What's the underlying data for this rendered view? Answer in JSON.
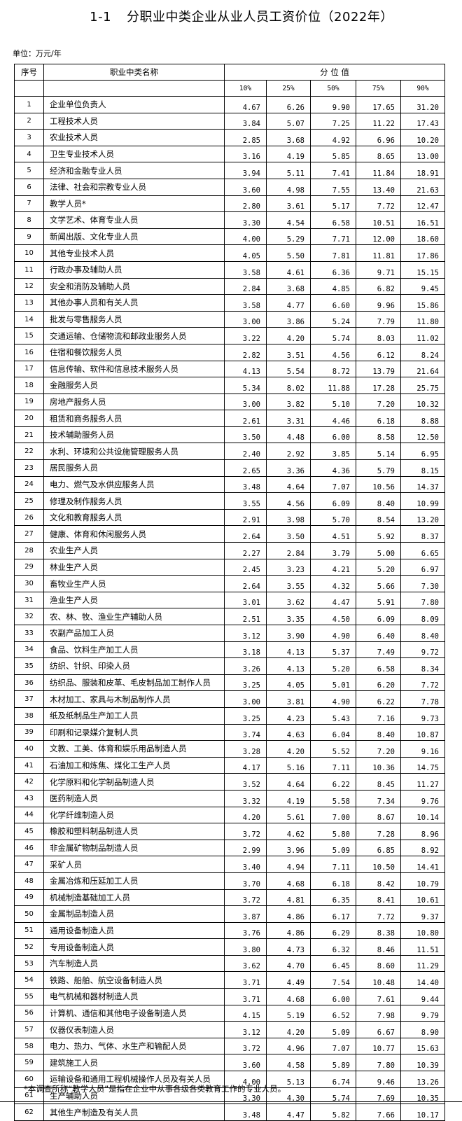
{
  "title": {
    "number": "1-1",
    "text": "分职业中类企业从业人员工资价位（2022年）"
  },
  "unit": "单位：万元/年",
  "table": {
    "headers": {
      "seq": "序号",
      "name": "职业中类名称",
      "group": "分 位 值",
      "percentiles": [
        "10%",
        "25%",
        "50%",
        "75%",
        "90%"
      ]
    },
    "rows": [
      [
        "1",
        "企业单位负责人",
        "4.67",
        "6.26",
        "9.90",
        "17.65",
        "31.20"
      ],
      [
        "2",
        "工程技术人员",
        "3.84",
        "5.07",
        "7.25",
        "11.22",
        "17.43"
      ],
      [
        "3",
        "农业技术人员",
        "2.85",
        "3.68",
        "4.92",
        "6.96",
        "10.20"
      ],
      [
        "4",
        "卫生专业技术人员",
        "3.16",
        "4.19",
        "5.85",
        "8.65",
        "13.00"
      ],
      [
        "5",
        "经济和金融专业人员",
        "3.94",
        "5.11",
        "7.41",
        "11.84",
        "18.91"
      ],
      [
        "6",
        "法律、社会和宗教专业人员",
        "3.60",
        "4.98",
        "7.55",
        "13.40",
        "21.63"
      ],
      [
        "7",
        "教学人员*",
        "2.80",
        "3.61",
        "5.17",
        "7.72",
        "12.47"
      ],
      [
        "8",
        "文学艺术、体育专业人员",
        "3.30",
        "4.54",
        "6.58",
        "10.51",
        "16.51"
      ],
      [
        "9",
        "新闻出版、文化专业人员",
        "4.00",
        "5.29",
        "7.71",
        "12.00",
        "18.60"
      ],
      [
        "10",
        "其他专业技术人员",
        "4.05",
        "5.50",
        "7.81",
        "11.81",
        "17.86"
      ],
      [
        "11",
        "行政办事及辅助人员",
        "3.58",
        "4.61",
        "6.36",
        "9.71",
        "15.15"
      ],
      [
        "12",
        "安全和消防及辅助人员",
        "2.84",
        "3.68",
        "4.85",
        "6.82",
        "9.45"
      ],
      [
        "13",
        "其他办事人员和有关人员",
        "3.58",
        "4.77",
        "6.60",
        "9.96",
        "15.86"
      ],
      [
        "14",
        "批发与零售服务人员",
        "3.00",
        "3.86",
        "5.24",
        "7.79",
        "11.80"
      ],
      [
        "15",
        "交通运输、仓储物流和邮政业服务人员",
        "3.22",
        "4.20",
        "5.74",
        "8.03",
        "11.02"
      ],
      [
        "16",
        "住宿和餐饮服务人员",
        "2.82",
        "3.51",
        "4.56",
        "6.12",
        "8.24"
      ],
      [
        "17",
        "信息传输、软件和信息技术服务人员",
        "4.13",
        "5.54",
        "8.72",
        "13.79",
        "21.64"
      ],
      [
        "18",
        "金融服务人员",
        "5.34",
        "8.02",
        "11.88",
        "17.28",
        "25.75"
      ],
      [
        "19",
        "房地产服务人员",
        "3.00",
        "3.82",
        "5.10",
        "7.20",
        "10.32"
      ],
      [
        "20",
        "租赁和商务服务人员",
        "2.61",
        "3.31",
        "4.46",
        "6.18",
        "8.88"
      ],
      [
        "21",
        "技术辅助服务人员",
        "3.50",
        "4.48",
        "6.00",
        "8.58",
        "12.50"
      ],
      [
        "22",
        "水利、环境和公共设施管理服务人员",
        "2.40",
        "2.92",
        "3.85",
        "5.14",
        "6.95"
      ],
      [
        "23",
        "居民服务人员",
        "2.65",
        "3.36",
        "4.36",
        "5.79",
        "8.15"
      ],
      [
        "24",
        "电力、燃气及水供应服务人员",
        "3.48",
        "4.64",
        "7.07",
        "10.56",
        "14.37"
      ],
      [
        "25",
        "修理及制作服务人员",
        "3.55",
        "4.56",
        "6.09",
        "8.40",
        "10.99"
      ],
      [
        "26",
        "文化和教育服务人员",
        "2.91",
        "3.98",
        "5.70",
        "8.54",
        "13.20"
      ],
      [
        "27",
        "健康、体育和休闲服务人员",
        "2.64",
        "3.50",
        "4.51",
        "5.92",
        "8.37"
      ],
      [
        "28",
        "农业生产人员",
        "2.27",
        "2.84",
        "3.79",
        "5.00",
        "6.65"
      ],
      [
        "29",
        "林业生产人员",
        "2.45",
        "3.23",
        "4.21",
        "5.20",
        "6.97"
      ],
      [
        "30",
        "畜牧业生产人员",
        "2.64",
        "3.55",
        "4.32",
        "5.66",
        "7.30"
      ],
      [
        "31",
        "渔业生产人员",
        "3.01",
        "3.62",
        "4.47",
        "5.91",
        "7.80"
      ],
      [
        "32",
        "农、林、牧、渔业生产辅助人员",
        "2.51",
        "3.35",
        "4.50",
        "6.09",
        "8.09"
      ],
      [
        "33",
        "农副产品加工人员",
        "3.12",
        "3.90",
        "4.90",
        "6.40",
        "8.40"
      ],
      [
        "34",
        "食品、饮料生产加工人员",
        "3.18",
        "4.13",
        "5.37",
        "7.49",
        "9.72"
      ],
      [
        "35",
        "纺织、针织、印染人员",
        "3.26",
        "4.13",
        "5.20",
        "6.58",
        "8.34"
      ],
      [
        "36",
        "纺织品、服装和皮革、毛皮制品加工制作人员",
        "3.25",
        "4.05",
        "5.01",
        "6.20",
        "7.72"
      ],
      [
        "37",
        "木材加工、家具与木制品制作人员",
        "3.00",
        "3.81",
        "4.90",
        "6.22",
        "7.78"
      ],
      [
        "38",
        "纸及纸制品生产加工人员",
        "3.25",
        "4.23",
        "5.43",
        "7.16",
        "9.73"
      ],
      [
        "39",
        "印刷和记录媒介复制人员",
        "3.74",
        "4.63",
        "6.04",
        "8.40",
        "10.87"
      ],
      [
        "40",
        "文教、工美、体育和娱乐用品制造人员",
        "3.28",
        "4.20",
        "5.52",
        "7.20",
        "9.16"
      ],
      [
        "41",
        "石油加工和炼焦、煤化工生产人员",
        "4.17",
        "5.16",
        "7.11",
        "10.36",
        "14.75"
      ],
      [
        "42",
        "化学原料和化学制品制造人员",
        "3.52",
        "4.64",
        "6.22",
        "8.45",
        "11.27"
      ],
      [
        "43",
        "医药制造人员",
        "3.32",
        "4.19",
        "5.58",
        "7.34",
        "9.76"
      ],
      [
        "44",
        "化学纤维制造人员",
        "4.20",
        "5.61",
        "7.00",
        "8.67",
        "10.14"
      ],
      [
        "45",
        "橡胶和塑料制品制造人员",
        "3.72",
        "4.62",
        "5.80",
        "7.28",
        "8.96"
      ],
      [
        "46",
        "非金属矿物制品制造人员",
        "2.99",
        "3.96",
        "5.09",
        "6.85",
        "8.92"
      ],
      [
        "47",
        "采矿人员",
        "3.40",
        "4.94",
        "7.11",
        "10.50",
        "14.41"
      ],
      [
        "48",
        "金属冶炼和压延加工人员",
        "3.70",
        "4.68",
        "6.18",
        "8.42",
        "10.79"
      ],
      [
        "49",
        "机械制造基础加工人员",
        "3.72",
        "4.81",
        "6.35",
        "8.41",
        "10.61"
      ],
      [
        "50",
        "金属制品制造人员",
        "3.87",
        "4.86",
        "6.17",
        "7.72",
        "9.37"
      ],
      [
        "51",
        "通用设备制造人员",
        "3.76",
        "4.86",
        "6.29",
        "8.38",
        "10.80"
      ],
      [
        "52",
        "专用设备制造人员",
        "3.80",
        "4.73",
        "6.32",
        "8.46",
        "11.51"
      ],
      [
        "53",
        "汽车制造人员",
        "3.62",
        "4.70",
        "6.45",
        "8.60",
        "11.29"
      ],
      [
        "54",
        "铁路、船舶、航空设备制造人员",
        "3.71",
        "4.49",
        "7.54",
        "10.48",
        "14.40"
      ],
      [
        "55",
        "电气机械和器材制造人员",
        "3.71",
        "4.68",
        "6.00",
        "7.61",
        "9.44"
      ],
      [
        "56",
        "计算机、通信和其他电子设备制造人员",
        "4.15",
        "5.19",
        "6.52",
        "7.98",
        "9.79"
      ],
      [
        "57",
        "仪器仪表制造人员",
        "3.12",
        "4.20",
        "5.09",
        "6.67",
        "8.90"
      ],
      [
        "58",
        "电力、热力、气体、水生产和输配人员",
        "3.72",
        "4.96",
        "7.07",
        "10.77",
        "15.63"
      ],
      [
        "59",
        "建筑施工人员",
        "3.60",
        "4.58",
        "5.89",
        "7.80",
        "10.39"
      ],
      [
        "60",
        "运输设备和通用工程机械操作人员及有关人员",
        "4.00",
        "5.13",
        "6.74",
        "9.46",
        "13.26"
      ],
      [
        "61",
        "生产辅助人员",
        "3.30",
        "4.30",
        "5.74",
        "7.69",
        "10.35"
      ],
      [
        "62",
        "其他生产制造及有关人员",
        "3.48",
        "4.47",
        "5.82",
        "7.66",
        "10.17"
      ]
    ]
  },
  "footnote": "*本调查所称“教学人员”是指在企业中从事各级各类教育工作的专业人员。"
}
